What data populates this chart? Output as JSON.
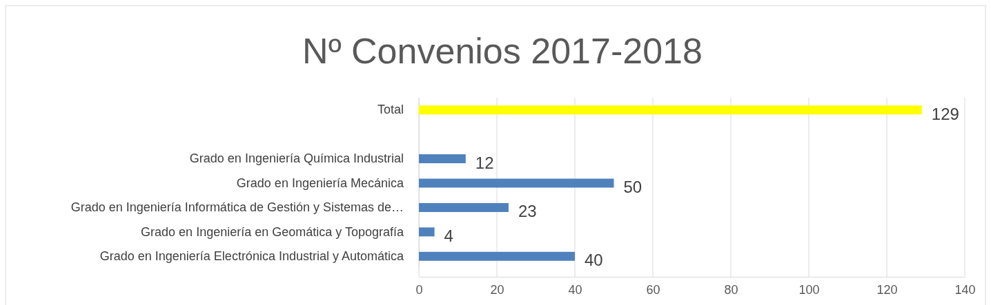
{
  "chart_data": {
    "type": "bar",
    "orientation": "horizontal",
    "title": "Nº Convenios 2017-2018",
    "categories": [
      "Total",
      null,
      "Grado en Ingeniería Química Industrial",
      "Grado en Ingeniería Mecánica",
      "Grado en Ingeniería Informática de Gestión y Sistemas de…",
      "Grado en Ingeniería en Geomática y Topografía",
      "Grado en Ingeniería Electrónica Industrial y Automática"
    ],
    "values": [
      129,
      null,
      12,
      50,
      23,
      4,
      40
    ],
    "colors": [
      "#ffff00",
      null,
      "#4f81bd",
      "#4f81bd",
      "#4f81bd",
      "#4f81bd",
      "#4f81bd"
    ],
    "xlim": [
      0,
      140
    ],
    "xticks": [
      0,
      20,
      40,
      60,
      80,
      100,
      120,
      140
    ],
    "grid": "x",
    "data_labels": true
  }
}
